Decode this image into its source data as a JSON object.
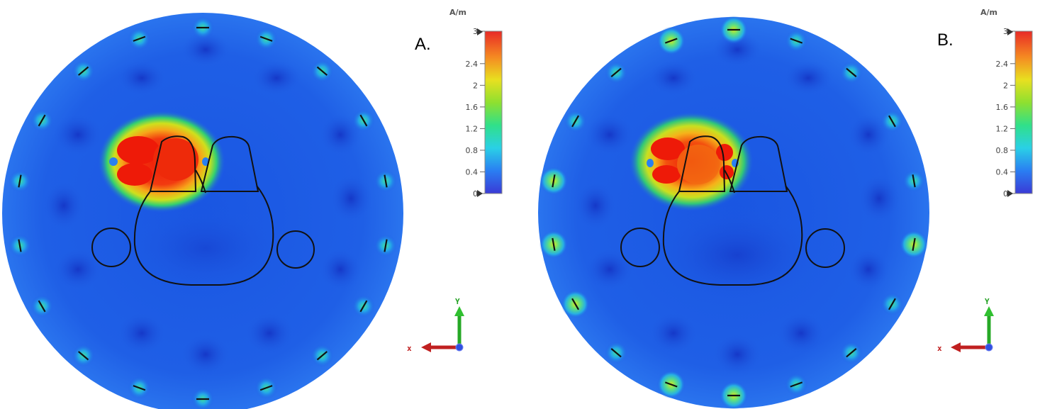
{
  "panels": [
    {
      "label": "A."
    },
    {
      "label": "B."
    }
  ],
  "colorbar": {
    "unit": "A/m",
    "ticks": [
      "3",
      "2.4",
      "2",
      "1.6",
      "1.2",
      "0.8",
      "0.4",
      "0"
    ]
  },
  "axes": {
    "x": "x",
    "y": "Y"
  },
  "colors": {
    "field_background": "#1f5fe6",
    "field_low": "#1744d0",
    "hot": "#ef1c0a",
    "outline": "#111111"
  }
}
